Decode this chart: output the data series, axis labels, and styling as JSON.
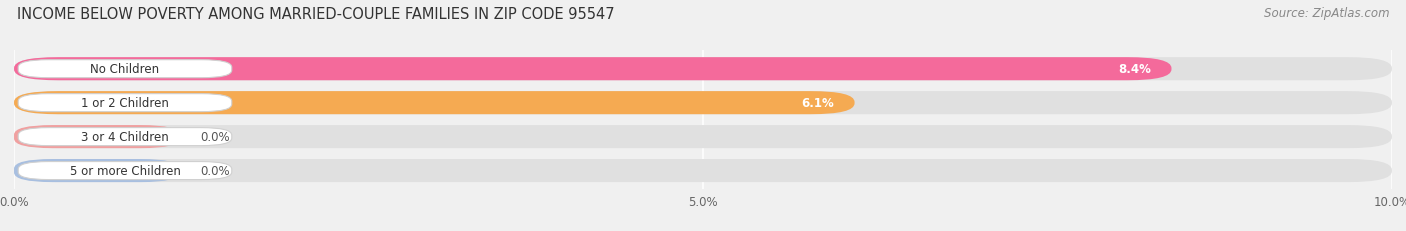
{
  "title": "INCOME BELOW POVERTY AMONG MARRIED-COUPLE FAMILIES IN ZIP CODE 95547",
  "source": "Source: ZipAtlas.com",
  "categories": [
    "No Children",
    "1 or 2 Children",
    "3 or 4 Children",
    "5 or more Children"
  ],
  "values": [
    8.4,
    6.1,
    0.0,
    0.0
  ],
  "bar_colors": [
    "#F46A9B",
    "#F5AA52",
    "#F0A0A0",
    "#A8BFE0"
  ],
  "value_labels": [
    "8.4%",
    "6.1%",
    "0.0%",
    "0.0%"
  ],
  "xlim": [
    0,
    10.0
  ],
  "xticks": [
    0.0,
    5.0,
    10.0
  ],
  "xticklabels": [
    "0.0%",
    "5.0%",
    "10.0%"
  ],
  "bg_color": "#f0f0f0",
  "bar_bg_color": "#e0e0e0",
  "title_fontsize": 10.5,
  "source_fontsize": 8.5,
  "label_fontsize": 8.5,
  "value_fontsize": 8.5
}
